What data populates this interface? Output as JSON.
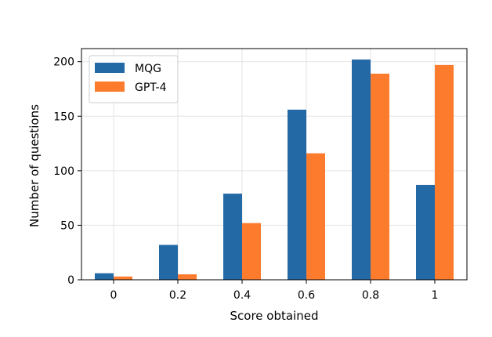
{
  "chart_data": {
    "type": "bar",
    "categories": [
      "0",
      "0.2",
      "0.4",
      "0.6",
      "0.8",
      "1"
    ],
    "series": [
      {
        "name": "MQG",
        "values": [
          6,
          32,
          79,
          156,
          202,
          87
        ],
        "color": "#2369a6"
      },
      {
        "name": "GPT-4",
        "values": [
          3,
          5,
          52,
          116,
          189,
          197
        ],
        "color": "#fc7b2d"
      }
    ],
    "xlabel": "Score obtained",
    "ylabel": "Number of questions",
    "ylim": [
      0,
      212
    ],
    "yticks": [
      0,
      50,
      100,
      150,
      200
    ],
    "grid": true,
    "legend_position": "top-left"
  }
}
